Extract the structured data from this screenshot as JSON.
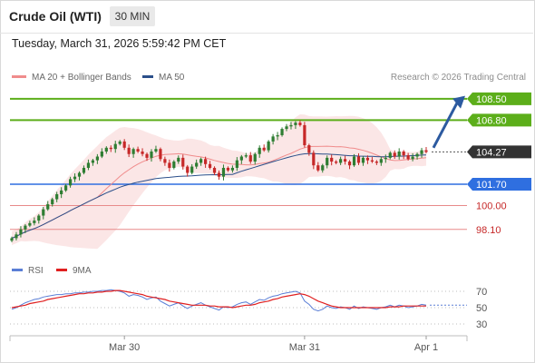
{
  "header": {
    "title": "Crude Oil (WTI)",
    "timeframe": "30 MIN"
  },
  "timestamp": "Tuesday, March 31, 2026 5:59:42 PM CET",
  "legend": {
    "ma20": {
      "label": "MA 20 + Bollinger Bands",
      "color": "#f08c8c"
    },
    "ma50": {
      "label": "MA 50",
      "color": "#2b4f8a"
    }
  },
  "copyright": "Research © 2026 Trading Central",
  "rsi_legend": {
    "rsi": {
      "label": "RSI",
      "color": "#5b7fd6"
    },
    "ma9": {
      "label": "9MA",
      "color": "#e02020"
    }
  },
  "colors": {
    "up": "#2e7d32",
    "down": "#c62828",
    "target": "#5cae1a",
    "pivot": "#2f6fe0",
    "support": "#e88a8a",
    "support_text": "#c62828",
    "arrow": "#2c5aa0",
    "current": "#333333"
  },
  "chart_data": {
    "type": "candlestick",
    "ylim": [
      97,
      109.5
    ],
    "levels": [
      {
        "name": "target-2",
        "value": 108.5,
        "label": "108.50",
        "kind": "target"
      },
      {
        "name": "target-1",
        "value": 106.8,
        "label": "106.80",
        "kind": "target"
      },
      {
        "name": "current",
        "value": 104.27,
        "label": "104.27",
        "kind": "current"
      },
      {
        "name": "pivot",
        "value": 101.7,
        "label": "101.70",
        "kind": "pivot"
      },
      {
        "name": "support-1",
        "value": 100.0,
        "label": "100.00",
        "kind": "support"
      },
      {
        "name": "support-2",
        "value": 98.1,
        "label": "98.10",
        "kind": "support"
      }
    ],
    "x_ticks": [
      {
        "label": "Mar 30",
        "index": 25
      },
      {
        "label": "Mar 31",
        "index": 65
      },
      {
        "label": "Apr 1",
        "index": 92
      }
    ],
    "rsi_ticks": [
      70,
      50,
      30
    ],
    "rsi_ylim": [
      20,
      80
    ],
    "close": [
      97.4,
      97.7,
      98.1,
      98.4,
      98.6,
      98.8,
      99.2,
      99.7,
      100.1,
      100.5,
      100.9,
      101.2,
      101.6,
      102.1,
      102.3,
      102.6,
      103.0,
      103.4,
      103.6,
      103.9,
      104.3,
      104.6,
      104.5,
      104.9,
      105.1,
      104.6,
      104.1,
      104.5,
      104.3,
      104.1,
      103.8,
      104.3,
      104.5,
      103.7,
      103.4,
      103.0,
      103.5,
      103.8,
      103.1,
      102.6,
      103.1,
      103.4,
      103.7,
      103.3,
      103.0,
      102.6,
      102.3,
      103.0,
      102.8,
      103.0,
      103.6,
      103.9,
      104.0,
      103.5,
      104.1,
      104.6,
      104.4,
      105.1,
      105.5,
      105.6,
      106.1,
      106.3,
      106.4,
      106.6,
      106.4,
      104.8,
      104.2,
      103.2,
      102.8,
      103.2,
      103.8,
      103.5,
      103.4,
      103.7,
      103.5,
      103.2,
      103.9,
      103.4,
      103.8,
      103.6,
      103.5,
      103.4,
      103.7,
      103.8,
      104.2,
      103.9,
      104.3,
      104.0,
      103.7,
      103.9,
      104.1,
      104.4,
      104.27
    ],
    "rsi": [
      48,
      50,
      53,
      56,
      58,
      60,
      61,
      63,
      64,
      65,
      66,
      66,
      67,
      67,
      68,
      68,
      69,
      69,
      70,
      70,
      71,
      71,
      72,
      71,
      70,
      68,
      64,
      66,
      65,
      63,
      60,
      62,
      63,
      58,
      55,
      52,
      54,
      56,
      52,
      49,
      52,
      54,
      56,
      53,
      51,
      49,
      47,
      51,
      50,
      51,
      54,
      56,
      57,
      54,
      57,
      60,
      59,
      62,
      64,
      65,
      67,
      68,
      69,
      70,
      68,
      58,
      54,
      48,
      46,
      48,
      52,
      50,
      49,
      51,
      50,
      48,
      52,
      49,
      51,
      50,
      49,
      48,
      50,
      51,
      53,
      51,
      53,
      52,
      50,
      51,
      52,
      54,
      53
    ],
    "rsi_ma9": [
      50,
      51,
      52,
      53,
      55,
      56,
      57,
      58,
      60,
      61,
      62,
      63,
      64,
      65,
      66,
      67,
      67,
      68,
      68,
      69,
      69,
      70,
      70,
      71,
      71,
      70,
      69,
      68,
      67,
      66,
      64,
      63,
      62,
      61,
      60,
      58,
      57,
      56,
      55,
      54,
      53,
      53,
      53,
      53,
      52,
      52,
      51,
      51,
      51,
      50,
      51,
      52,
      53,
      53,
      54,
      56,
      57,
      58,
      60,
      61,
      63,
      64,
      65,
      66,
      67,
      66,
      64,
      61,
      58,
      56,
      54,
      52,
      51,
      50,
      50,
      50,
      50,
      50,
      50,
      50,
      50,
      50,
      50,
      50,
      51,
      51,
      51,
      52,
      52,
      52,
      52,
      52,
      52
    ]
  }
}
